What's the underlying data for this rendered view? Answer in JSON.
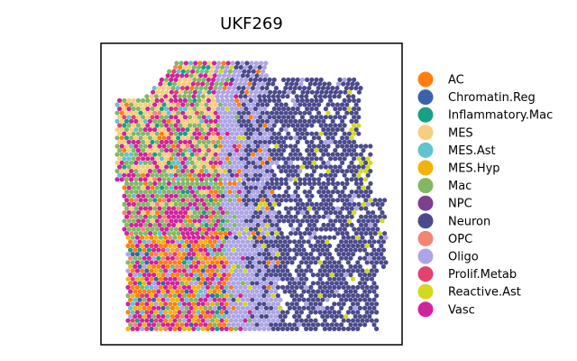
{
  "chart_data": {
    "type": "scatter",
    "title": "UKF269",
    "xlabel": "",
    "ylabel": "",
    "grid": false,
    "legend_placement": "right",
    "series": [
      {
        "name": "AC",
        "color": "#ff7f0e"
      },
      {
        "name": "Chromatin.Reg",
        "color": "#3a63a8"
      },
      {
        "name": "Inflammatory.Mac",
        "color": "#17a083"
      },
      {
        "name": "MES",
        "color": "#f6ce7d"
      },
      {
        "name": "MES.Ast",
        "color": "#5fc4cf"
      },
      {
        "name": "MES.Hyp",
        "color": "#f2b40c"
      },
      {
        "name": "Mac",
        "color": "#82b865"
      },
      {
        "name": "NPC",
        "color": "#7e3f90"
      },
      {
        "name": "Neuron",
        "color": "#4a4a8c"
      },
      {
        "name": "OPC",
        "color": "#f58474"
      },
      {
        "name": "Oligo",
        "color": "#ada5e4"
      },
      {
        "name": "Prolif.Metab",
        "color": "#e5416f"
      },
      {
        "name": "Reactive.Ast",
        "color": "#d3d91c"
      },
      {
        "name": "Vasc",
        "color": "#d0239d"
      }
    ]
  }
}
